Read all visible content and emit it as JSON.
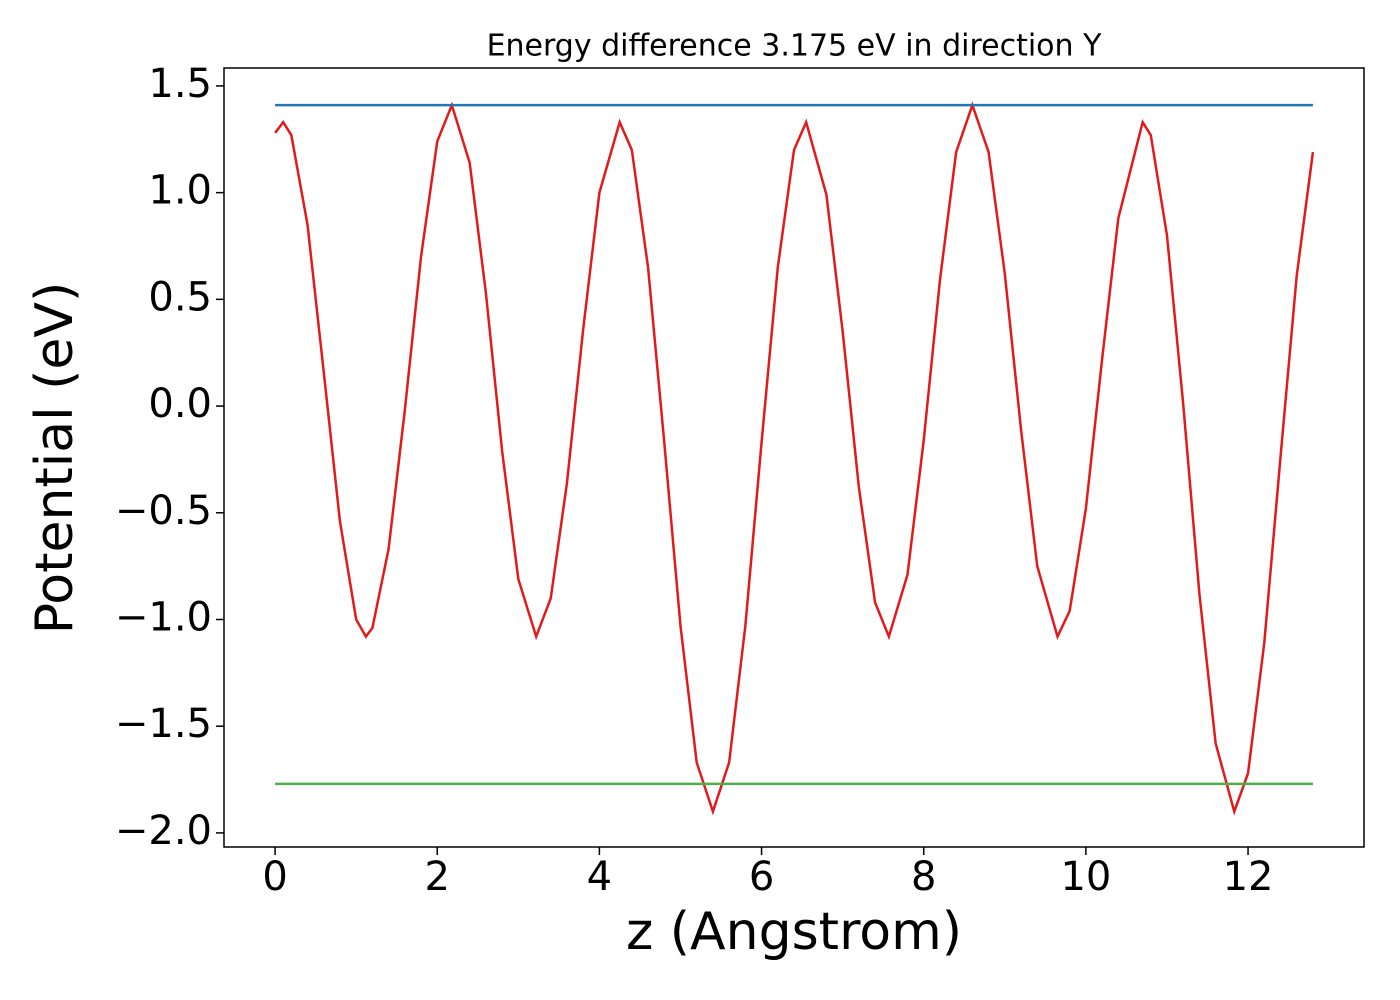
{
  "chart_data": {
    "type": "line",
    "title": "Energy difference 3.175 eV in direction Y",
    "x_label": "z (Angstrom)",
    "y_label": "Potential (eV)",
    "xlim": [
      -0.63,
      13.43
    ],
    "ylim": [
      -2.066,
      1.584
    ],
    "xticks": [
      0,
      2,
      4,
      6,
      8,
      10,
      12
    ],
    "yticks": [
      {
        "value": -2.0,
        "label": "−2.0"
      },
      {
        "value": -1.5,
        "label": "−1.5"
      },
      {
        "value": -1.0,
        "label": "−1.0"
      },
      {
        "value": -0.5,
        "label": "−0.5"
      },
      {
        "value": 0.0,
        "label": "0.0"
      },
      {
        "value": 0.5,
        "label": "0.5"
      },
      {
        "value": 1.0,
        "label": "1.0"
      },
      {
        "value": 1.5,
        "label": "1.5"
      }
    ],
    "series": [
      {
        "color": "#e31a1c",
        "x": [
          0,
          0.1,
          0.2,
          0.4,
          0.6,
          0.8,
          1.0,
          1.12,
          1.2,
          1.4,
          1.6,
          1.8,
          2.0,
          2.18,
          2.4,
          2.6,
          2.8,
          3.0,
          3.22,
          3.4,
          3.6,
          3.8,
          4.0,
          4.25,
          4.4,
          4.6,
          4.8,
          5.0,
          5.2,
          5.4,
          5.6,
          5.8,
          6.0,
          6.2,
          6.4,
          6.55,
          6.8,
          7.0,
          7.2,
          7.4,
          7.57,
          7.8,
          8.0,
          8.2,
          8.4,
          8.6,
          8.8,
          9.0,
          9.2,
          9.4,
          9.65,
          9.8,
          10.0,
          10.2,
          10.4,
          10.7,
          10.8,
          11.0,
          11.2,
          11.4,
          11.6,
          11.83,
          12.0,
          12.2,
          12.4,
          12.6,
          12.8
        ],
        "values": [
          1.28,
          1.33,
          1.27,
          0.85,
          0.16,
          -0.54,
          -1.0,
          -1.08,
          -1.04,
          -0.67,
          -0.02,
          0.7,
          1.24,
          1.41,
          1.14,
          0.53,
          -0.21,
          -0.81,
          -1.08,
          -0.9,
          -0.36,
          0.36,
          1.0,
          1.33,
          1.2,
          0.65,
          -0.17,
          -1.03,
          -1.67,
          -1.9,
          -1.67,
          -1.03,
          -0.17,
          0.65,
          1.2,
          1.33,
          0.99,
          0.35,
          -0.38,
          -0.92,
          -1.08,
          -0.79,
          -0.16,
          0.59,
          1.19,
          1.41,
          1.19,
          0.62,
          -0.11,
          -0.75,
          -1.08,
          -0.96,
          -0.48,
          0.22,
          0.88,
          1.33,
          1.27,
          0.8,
          0.01,
          -0.88,
          -1.58,
          -1.9,
          -1.72,
          -1.11,
          -0.24,
          0.61,
          1.19
        ]
      },
      {
        "color": "#1f77b4",
        "x": [
          0,
          12.8
        ],
        "values": [
          1.41,
          1.41
        ]
      },
      {
        "color": "#4daf4a",
        "x": [
          0,
          12.8
        ],
        "values": [
          -1.77,
          -1.77
        ]
      }
    ]
  }
}
